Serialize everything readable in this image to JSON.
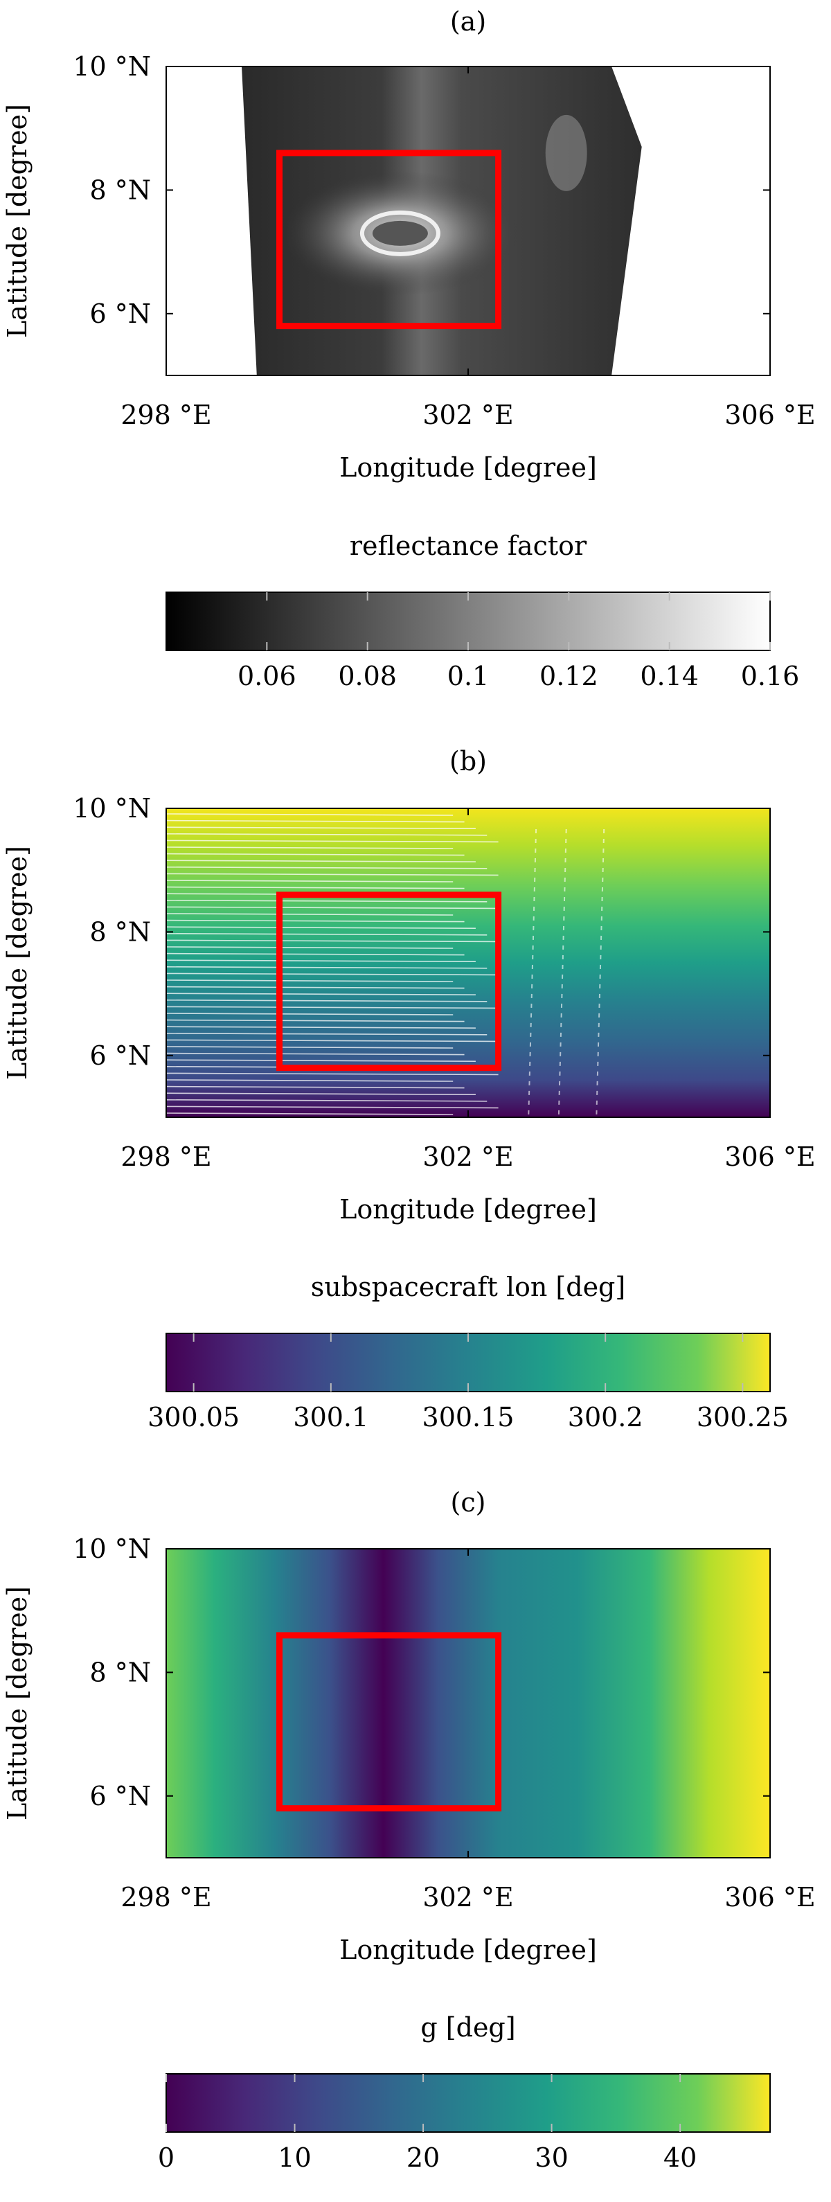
{
  "chart_data": [
    {
      "type": "heatmap",
      "panel_label": "(a)",
      "title": "(a)",
      "xlabel": "Longitude [degree]",
      "ylabel": "Latitude [degree]",
      "xlim": [
        298,
        306
      ],
      "ylim": [
        5,
        10
      ],
      "x_ticks": [
        298,
        302,
        306
      ],
      "x_tick_labels": [
        "298 °E",
        "302 °E",
        "306 °E"
      ],
      "y_ticks": [
        6,
        8,
        10
      ],
      "y_tick_labels": [
        "6 °N",
        "8 °N",
        "10 °N"
      ],
      "region_box": {
        "lon": [
          299.5,
          302.4
        ],
        "lat": [
          5.8,
          8.6
        ],
        "color": "#ff0000"
      },
      "colorbar": {
        "label": "reflectance factor",
        "colormap": "gray",
        "range": [
          0.04,
          0.16
        ],
        "ticks": [
          0.06,
          0.08,
          0.1,
          0.12,
          0.14,
          0.16
        ],
        "tick_labels": [
          "0.06",
          "0.08",
          "0.1",
          "0.12",
          "0.14",
          "0.16"
        ]
      }
    },
    {
      "type": "heatmap",
      "panel_label": "(b)",
      "title": "(b)",
      "xlabel": "Longitude [degree]",
      "ylabel": "Latitude [degree]",
      "xlim": [
        298,
        306
      ],
      "ylim": [
        5,
        10
      ],
      "x_ticks": [
        298,
        302,
        306
      ],
      "x_tick_labels": [
        "298 °E",
        "302 °E",
        "306 °E"
      ],
      "y_ticks": [
        6,
        8,
        10
      ],
      "y_tick_labels": [
        "6 °N",
        "8 °N",
        "10 °N"
      ],
      "region_box": {
        "lon": [
          299.5,
          302.4
        ],
        "lat": [
          5.8,
          8.6
        ],
        "color": "#ff0000"
      },
      "colorbar": {
        "label": "subspacecraft lon [deg]",
        "colormap": "viridis",
        "range": [
          300.04,
          300.26
        ],
        "ticks": [
          300.05,
          300.1,
          300.15,
          300.2,
          300.25
        ],
        "tick_labels": [
          "300.05",
          "300.1",
          "300.15",
          "300.2",
          "300.25"
        ]
      }
    },
    {
      "type": "heatmap",
      "panel_label": "(c)",
      "title": "(c)",
      "xlabel": "Longitude [degree]",
      "ylabel": "Latitude [degree]",
      "xlim": [
        298,
        306
      ],
      "ylim": [
        5,
        10
      ],
      "x_ticks": [
        298,
        302,
        306
      ],
      "x_tick_labels": [
        "298 °E",
        "302 °E",
        "306 °E"
      ],
      "y_ticks": [
        6,
        8,
        10
      ],
      "y_tick_labels": [
        "6 °N",
        "8 °N",
        "10 °N"
      ],
      "region_box": {
        "lon": [
          299.5,
          302.4
        ],
        "lat": [
          5.8,
          8.6
        ],
        "color": "#ff0000"
      },
      "colorbar": {
        "label": "g [deg]",
        "colormap": "viridis",
        "range": [
          0,
          47
        ],
        "ticks": [
          0,
          10,
          20,
          30,
          40
        ],
        "tick_labels": [
          "0",
          "10",
          "20",
          "30",
          "40"
        ]
      }
    }
  ]
}
